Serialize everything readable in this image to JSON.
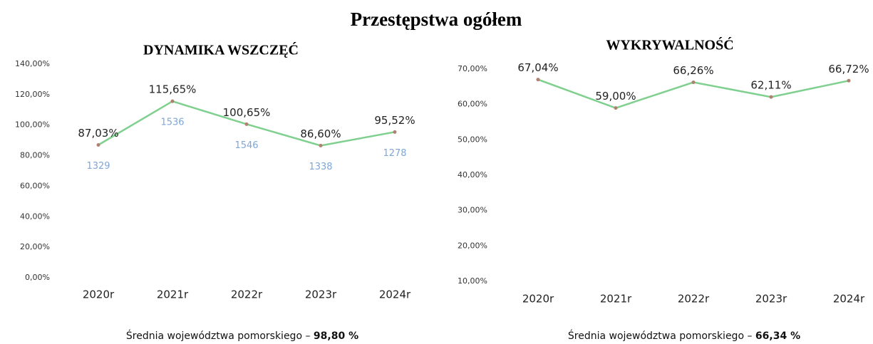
{
  "title": "Przestępstwa ogółem",
  "chart_data": [
    {
      "type": "line",
      "title": "DYNAMIKA WSZCZĘĆ",
      "categories": [
        "2020r",
        "2021r",
        "2022r",
        "2023r",
        "2024r"
      ],
      "values": [
        87.03,
        115.65,
        100.65,
        86.6,
        95.52
      ],
      "value_labels": [
        "87,03%",
        "115,65%",
        "100,65%",
        "86,60%",
        "95,52%"
      ],
      "counts": [
        1329,
        1536,
        1546,
        1338,
        1278
      ],
      "color": "#7fd08e",
      "ylim": [
        0,
        140
      ],
      "yticks": [
        {
          "value": 0,
          "label": "0,00%"
        },
        {
          "value": 20,
          "label": "20,00%"
        },
        {
          "value": 40,
          "label": "40,00%"
        },
        {
          "value": 60,
          "label": "60,00%"
        },
        {
          "value": 80,
          "label": "80,00%"
        },
        {
          "value": 100,
          "label": "100,00%"
        },
        {
          "value": 120,
          "label": "120,00%"
        },
        {
          "value": 140,
          "label": "140,00%"
        }
      ],
      "average_text": "Średnia województwa pomorskiego –",
      "average": {
        "value": 98.8,
        "label": "98,80 %"
      }
    },
    {
      "type": "line",
      "title": "WYKRYWALNOŚĆ",
      "categories": [
        "2020r",
        "2021r",
        "2022r",
        "2023r",
        "2024r"
      ],
      "values": [
        67.04,
        59.0,
        66.26,
        62.11,
        66.72
      ],
      "value_labels": [
        "67,04%",
        "59,00%",
        "66,26%",
        "62,11%",
        "66,72%"
      ],
      "color": "#7fd08e",
      "ylim": [
        10,
        70
      ],
      "yticks": [
        {
          "value": 10,
          "label": "10,00%"
        },
        {
          "value": 20,
          "label": "20,00%"
        },
        {
          "value": 30,
          "label": "30,00%"
        },
        {
          "value": 40,
          "label": "40,00%"
        },
        {
          "value": 50,
          "label": "50,00%"
        },
        {
          "value": 60,
          "label": "60,00%"
        },
        {
          "value": 70,
          "label": "70,00%"
        }
      ],
      "average_text": "Średnia województwa pomorskiego –",
      "average": {
        "value": 66.34,
        "label": "66,34 %"
      }
    }
  ]
}
